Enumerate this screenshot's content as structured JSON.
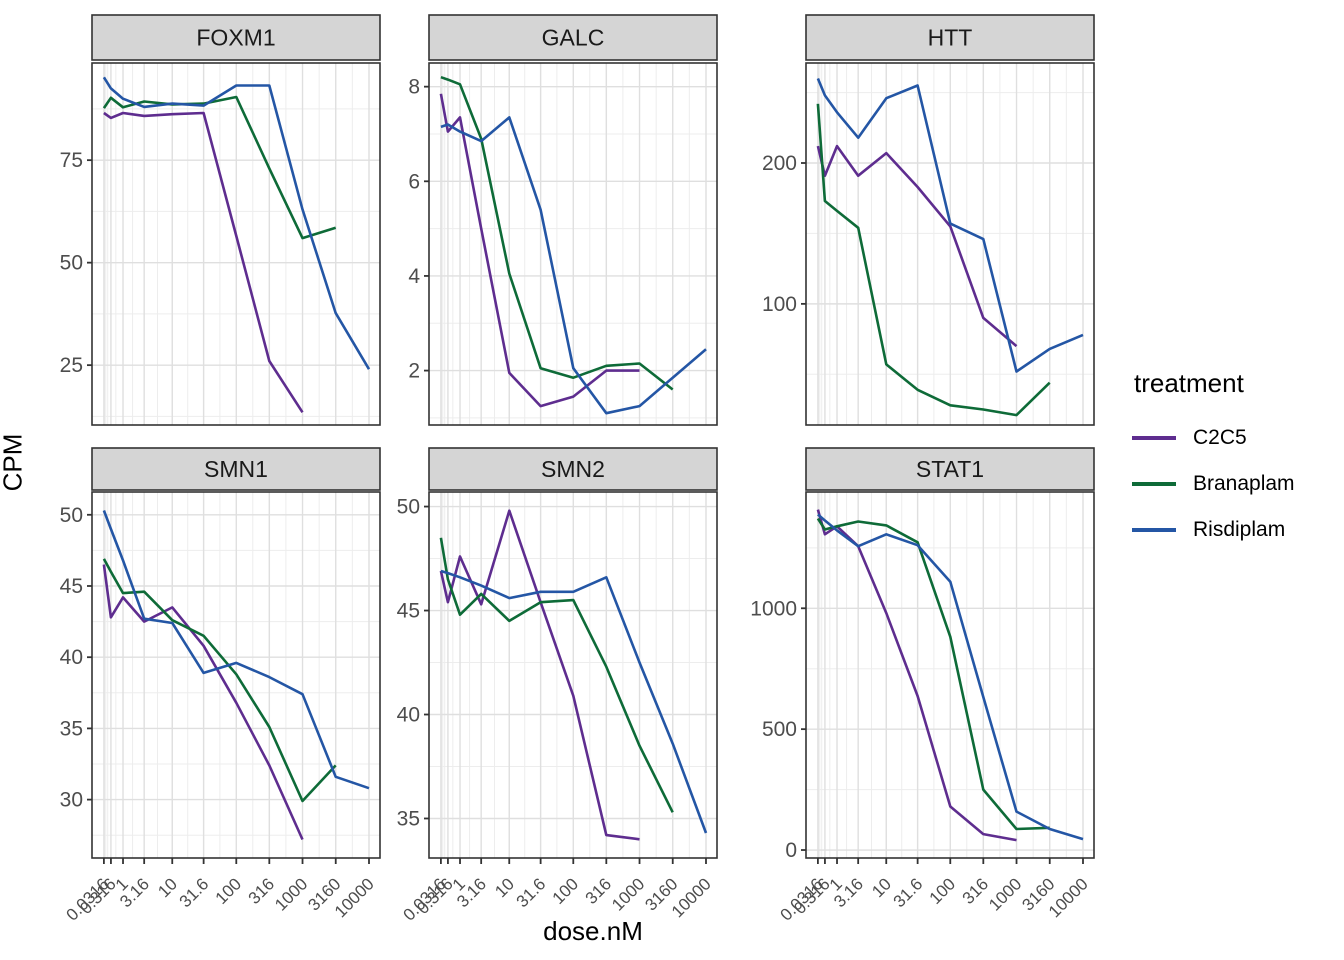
{
  "axis": {
    "x_title": "dose.nM",
    "y_title": "CPM"
  },
  "legend": {
    "title": "treatment",
    "entries": [
      {
        "label": "C2C5",
        "color": "#5E2D8F"
      },
      {
        "label": "Branaplam",
        "color": "#0E6B38"
      },
      {
        "label": "Risdiplam",
        "color": "#2456A5"
      }
    ]
  },
  "chart_data": {
    "type": "line",
    "faceted": true,
    "facet_titles": [
      "FOXM1",
      "GALC",
      "HTT",
      "SMN1",
      "SMN2",
      "STAT1"
    ],
    "xlabel": "dose.nM",
    "ylabel": "CPM",
    "x": {
      "scale": "log1p",
      "doses": [
        0.0316,
        0.316,
        1,
        3.16,
        10,
        31.6,
        100,
        316,
        1000,
        3160,
        10000
      ],
      "tick_labels": [
        "0.0316",
        "0.316",
        "1",
        "3.16",
        "10",
        "31.6",
        "100",
        "316",
        "1000",
        "3160",
        "10000"
      ],
      "minor_doses": [
        0.056,
        0.1,
        0.178,
        0.56,
        1.78,
        5.6,
        17.8,
        56.2,
        178,
        562,
        1780,
        5620
      ]
    },
    "panels": [
      {
        "title": "FOXM1",
        "y_ticks": [
          25,
          50,
          75
        ],
        "y_minor": [
          12.5,
          37.5,
          62.5,
          87.5
        ],
        "y_domain": [
          10.4,
          98.7
        ],
        "series": [
          {
            "name": "C2C5",
            "values": [
              86.5,
              85.3,
              86.5,
              85.8,
              86.2,
              86.5,
              56.5,
              26,
              13.5
            ]
          },
          {
            "name": "Branaplam",
            "values": [
              87.7,
              90.2,
              87.9,
              89.3,
              88.6,
              88.8,
              90.4,
              73,
              56,
              58.5
            ]
          },
          {
            "name": "Risdiplam",
            "values": [
              95.2,
              92.5,
              90,
              88,
              88.8,
              88.3,
              93.2,
              93.2,
              63,
              37.7,
              24
            ]
          }
        ]
      },
      {
        "title": "GALC",
        "y_ticks": [
          2,
          4,
          6,
          8
        ],
        "y_minor": [
          1,
          3,
          5,
          7
        ],
        "y_domain": [
          0.85,
          8.5
        ],
        "series": [
          {
            "name": "C2C5",
            "values": [
              7.85,
              7.05,
              7.35,
              5.0,
              1.95,
              1.25,
              1.45,
              2.0,
              2.0
            ]
          },
          {
            "name": "Branaplam",
            "values": [
              8.2,
              8.15,
              8.05,
              6.9,
              4.05,
              2.05,
              1.85,
              2.1,
              2.15,
              1.6
            ]
          },
          {
            "name": "Risdiplam",
            "values": [
              7.15,
              7.2,
              7.05,
              6.85,
              7.35,
              5.4,
              2.05,
              1.1,
              1.25,
              1.85,
              2.45
            ]
          }
        ]
      },
      {
        "title": "HTT",
        "y_ticks": [
          100,
          200
        ],
        "y_minor": [
          50,
          150,
          250
        ],
        "y_domain": [
          14,
          271
        ],
        "series": [
          {
            "name": "C2C5",
            "values": [
              212,
              191,
              212,
              191,
              207,
              183,
              155,
              90,
              70
            ]
          },
          {
            "name": "Branaplam",
            "values": [
              242,
              173,
              166,
              154,
              57,
              39,
              28,
              25,
              21,
              44
            ]
          },
          {
            "name": "Risdiplam",
            "values": [
              260,
              248,
              236,
              218,
              246,
              255,
              157,
              146,
              52,
              68,
              78
            ]
          }
        ]
      },
      {
        "title": "SMN1",
        "y_ticks": [
          30,
          35,
          40,
          45,
          50
        ],
        "y_minor": [
          27.5,
          32.5,
          37.5,
          42.5,
          47.5
        ],
        "y_domain": [
          25.9,
          51.6
        ],
        "series": [
          {
            "name": "C2C5",
            "values": [
              46.5,
              42.8,
              44.2,
              42.5,
              43.5,
              40.8,
              36.8,
              32.4,
              27.2
            ]
          },
          {
            "name": "Branaplam",
            "values": [
              46.9,
              46.0,
              44.5,
              44.6,
              42.6,
              41.5,
              38.8,
              35.1,
              29.9,
              32.4
            ]
          },
          {
            "name": "Risdiplam",
            "values": [
              50.3,
              49.0,
              46.8,
              42.7,
              42.4,
              38.9,
              39.6,
              38.6,
              37.4,
              31.6,
              30.8
            ]
          }
        ]
      },
      {
        "title": "SMN2",
        "y_ticks": [
          35,
          40,
          45,
          50
        ],
        "y_minor": [
          37.5,
          42.5,
          47.5
        ],
        "y_domain": [
          33.1,
          50.7
        ],
        "series": [
          {
            "name": "C2C5",
            "values": [
              46.9,
              45.4,
              47.6,
              45.3,
              49.8,
              45.4,
              40.9,
              34.2,
              34.0
            ]
          },
          {
            "name": "Branaplam",
            "values": [
              48.5,
              46.5,
              44.8,
              45.8,
              44.5,
              45.4,
              45.5,
              42.3,
              38.5,
              35.3
            ]
          },
          {
            "name": "Risdiplam",
            "values": [
              46.9,
              46.8,
              46.6,
              46.2,
              45.6,
              45.9,
              45.9,
              46.6,
              42.5,
              38.6,
              34.3
            ]
          }
        ]
      },
      {
        "title": "STAT1",
        "y_ticks": [
          0,
          500,
          1000
        ],
        "y_minor": [
          250,
          750,
          1250
        ],
        "y_domain": [
          -33,
          1481
        ],
        "series": [
          {
            "name": "C2C5",
            "values": [
              1408,
              1306,
              1339,
              1257,
              980,
              637,
              180,
              66,
              41
            ]
          },
          {
            "name": "Branaplam",
            "values": [
              1371,
              1326,
              1339,
              1359,
              1343,
              1273,
              882,
              250,
              87,
              92
            ]
          },
          {
            "name": "Risdiplam",
            "values": [
              1388,
              1363,
              1322,
              1257,
              1306,
              1261,
              1110,
              633,
              159,
              87,
              45
            ]
          }
        ]
      }
    ]
  }
}
